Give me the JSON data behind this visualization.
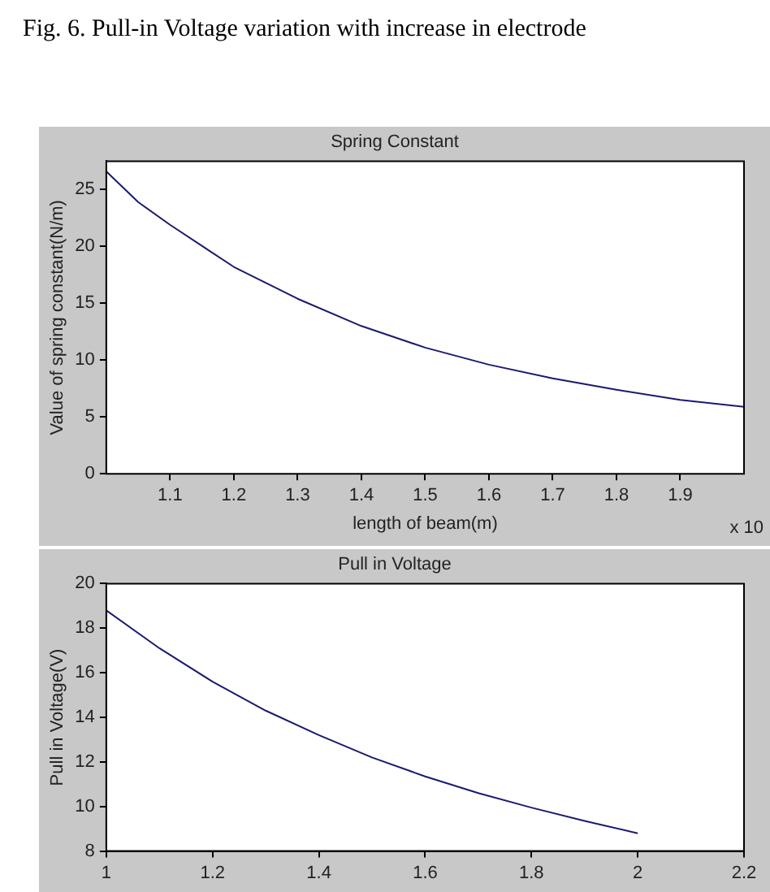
{
  "chart_data": [
    {
      "type": "line",
      "title": "Spring Constant",
      "xlabel": "length of beam(m)",
      "ylabel": "Value of spring constant(N/m)",
      "annotations": [
        "Fig. 6. Pull-in Voltage variation with increase in electrode",
        "x 10"
      ],
      "x": [
        1.0,
        1.05,
        1.1,
        1.2,
        1.3,
        1.4,
        1.5,
        1.6,
        1.7,
        1.8,
        1.9,
        2.0
      ],
      "series": [
        {
          "color": "#1a1a6e",
          "values": [
            26.6,
            23.9,
            21.9,
            18.2,
            15.4,
            13.0,
            11.1,
            9.6,
            8.4,
            7.4,
            6.5,
            5.9
          ]
        }
      ],
      "xlim": [
        1,
        2
      ],
      "xticks": [
        1.1,
        1.2,
        1.3,
        1.4,
        1.5,
        1.6,
        1.7,
        1.8,
        1.9
      ],
      "ylim": [
        0,
        27.5
      ],
      "yticks": [
        0,
        5,
        10,
        15,
        20,
        25
      ],
      "grid": false,
      "legend": false,
      "marker": "none",
      "line_style": "solid"
    },
    {
      "type": "line",
      "title": "Pull in Voltage",
      "ylabel": "Pull in Voltage(V)",
      "x": [
        1.0,
        1.1,
        1.2,
        1.3,
        1.4,
        1.5,
        1.6,
        1.7,
        1.8,
        1.9,
        2.0
      ],
      "series": [
        {
          "color": "#1a1a6e",
          "values": [
            18.8,
            17.1,
            15.6,
            14.3,
            13.2,
            12.2,
            11.35,
            10.6,
            9.95,
            9.35,
            8.8
          ]
        }
      ],
      "xlim": [
        1,
        2.2
      ],
      "xticks": [
        1,
        1.2,
        1.4,
        1.6,
        1.8,
        2,
        2.2
      ],
      "ylim": [
        8,
        20
      ],
      "yticks": [
        8,
        10,
        12,
        14,
        16,
        18,
        20
      ],
      "grid": false,
      "legend": false,
      "marker": "none",
      "line_style": "solid"
    }
  ]
}
